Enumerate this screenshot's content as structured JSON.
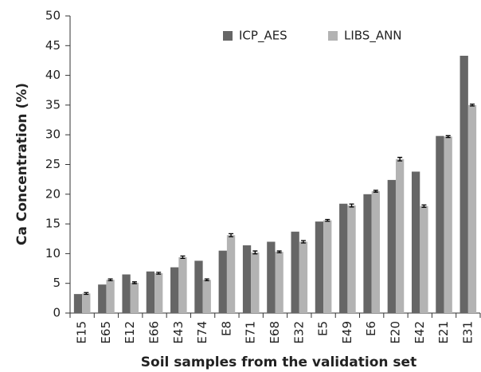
{
  "chart_data": {
    "type": "bar",
    "x_label": "Soil samples from the validation set",
    "y_label": "Ca Concentration (%)",
    "categories": [
      "E15",
      "E65",
      "E12",
      "E66",
      "E43",
      "E74",
      "E8",
      "E71",
      "E68",
      "E32",
      "E5",
      "E49",
      "E6",
      "E20",
      "E42",
      "E21",
      "E31"
    ],
    "series": [
      {
        "name": "ICP_AES",
        "color": "#666666",
        "values": [
          3.2,
          4.8,
          6.5,
          7.0,
          7.7,
          8.8,
          10.5,
          11.4,
          12.0,
          13.7,
          15.4,
          18.4,
          20.0,
          22.4,
          23.8,
          29.8,
          43.3
        ]
      },
      {
        "name": "LIBS_ANN",
        "color": "#b3b3b3",
        "values": [
          3.3,
          5.6,
          5.1,
          6.7,
          9.4,
          5.6,
          13.1,
          10.2,
          10.3,
          12.0,
          15.6,
          18.1,
          20.5,
          25.9,
          18.0,
          29.7,
          35.0
        ],
        "errors": [
          0.15,
          0.15,
          0.15,
          0.15,
          0.2,
          0.15,
          0.25,
          0.25,
          0.15,
          0.2,
          0.15,
          0.25,
          0.15,
          0.3,
          0.2,
          0.15,
          0.15
        ]
      }
    ],
    "ylim": [
      0,
      50
    ],
    "yticks": [
      0,
      5,
      10,
      15,
      20,
      25,
      30,
      35,
      40,
      45,
      50
    ],
    "legend": "top"
  }
}
